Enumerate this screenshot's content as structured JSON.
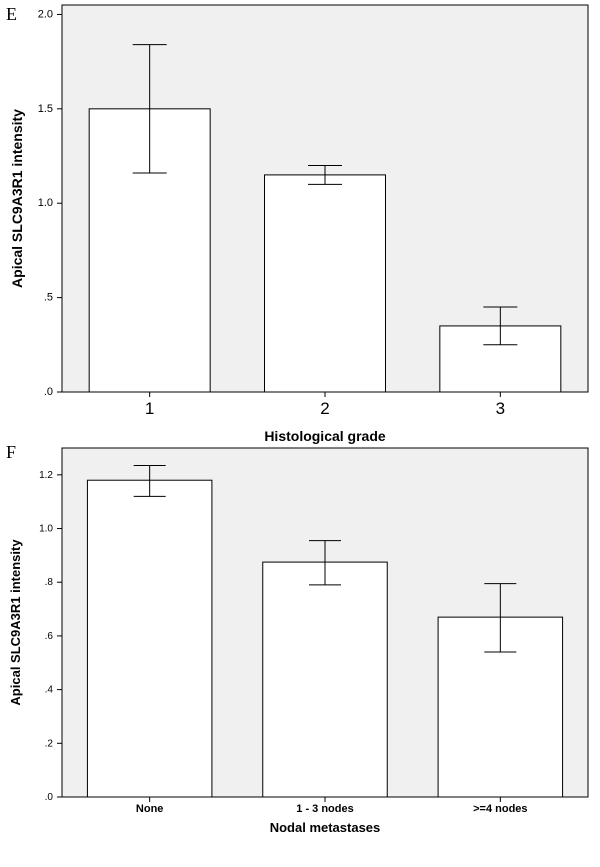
{
  "chart_data": [
    {
      "panel_label": "E",
      "type": "bar",
      "categories": [
        "1",
        "2",
        "3"
      ],
      "values": [
        1.5,
        1.15,
        0.35
      ],
      "error_bars": [
        [
          1.16,
          1.84
        ],
        [
          1.1,
          1.2
        ],
        [
          0.25,
          0.45
        ]
      ],
      "xlabel": "Histological grade",
      "ylabel": "Apical SLC9A3R1 intensity",
      "ylim": [
        0,
        2.05
      ],
      "yticks": [
        0,
        0.5,
        1.0,
        1.5,
        2.0
      ],
      "ytick_labels": [
        ".0",
        ".5",
        "1.0",
        "1.5",
        "2.0"
      ],
      "plot_background": "#f0f0f0",
      "bar_color": "#ffffff",
      "grid": false
    },
    {
      "panel_label": "F",
      "type": "bar",
      "categories": [
        "None",
        "1 - 3 nodes",
        ">=4 nodes"
      ],
      "values": [
        1.18,
        0.875,
        0.67
      ],
      "error_bars": [
        [
          1.12,
          1.235
        ],
        [
          0.79,
          0.955
        ],
        [
          0.54,
          0.795
        ]
      ],
      "xlabel": "Nodal metastases",
      "ylabel": "Apical SLC9A3R1 intensity",
      "ylim": [
        0,
        1.3
      ],
      "yticks": [
        0,
        0.2,
        0.4,
        0.6,
        0.8,
        1.0,
        1.2
      ],
      "ytick_labels": [
        ".0",
        ".2",
        ".4",
        ".6",
        ".8",
        "1.0",
        "1.2"
      ],
      "plot_background": "#f0f0f0",
      "bar_color": "#ffffff",
      "grid": false
    }
  ]
}
